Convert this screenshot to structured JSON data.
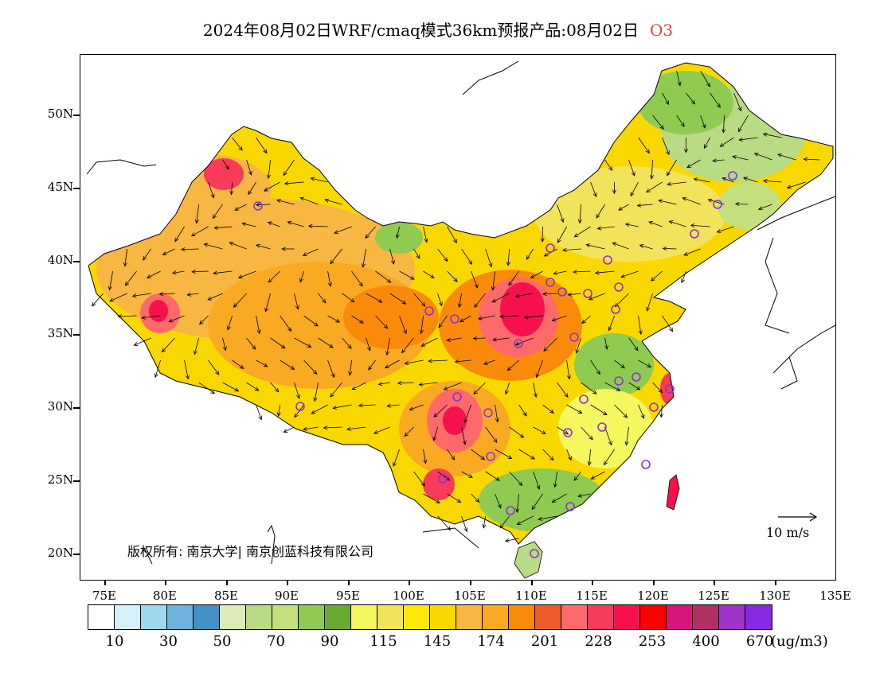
{
  "title": {
    "main": "2024年08月02日WRF/cmaq模式36km预报产品:08月02日",
    "species": "O3"
  },
  "axes": {
    "lat_labels": [
      "50N",
      "45N",
      "40N",
      "35N",
      "30N",
      "25N",
      "20N"
    ],
    "lon_labels": [
      "75E",
      "80E",
      "85E",
      "90E",
      "95E",
      "100E",
      "105E",
      "110E",
      "115E",
      "120E",
      "125E",
      "130E",
      "135E"
    ]
  },
  "legend": {
    "colors": [
      "#ffffff",
      "#d6f0fb",
      "#a0d8f0",
      "#6fb2de",
      "#4690c8",
      "#dcebb8",
      "#b9db84",
      "#c3e07c",
      "#8fcb50",
      "#6aaa32",
      "#f4f75e",
      "#f3e35a",
      "#fce809",
      "#f9d800",
      "#f8b643",
      "#f9a922",
      "#fa8b0a",
      "#ef5a2b",
      "#fe6a6a",
      "#f93b5a",
      "#f6114c",
      "#fe0000",
      "#d7157d",
      "#ad3163",
      "#9e34c8",
      "#8529e2"
    ],
    "labels": [
      "10",
      "30",
      "50",
      "70",
      "90",
      "115",
      "145",
      "174",
      "201",
      "228",
      "253",
      "400",
      "670"
    ],
    "unit": "(ug/m3)"
  },
  "copyright": "版权所有: 南京大学| 南京创蓝科技有限公司",
  "wind_reference": "10  m/s",
  "sites_color": "#8b2fd8"
}
